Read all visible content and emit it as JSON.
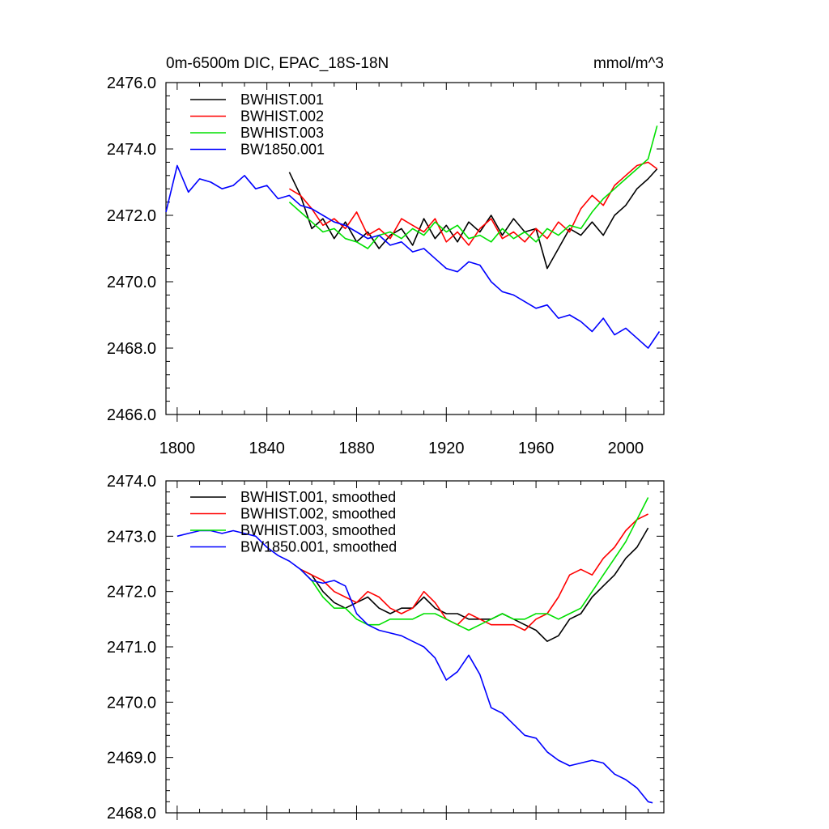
{
  "chart_data": [
    {
      "type": "line",
      "title_left": "0m-6500m DIC, EPAC_18S-18N",
      "title_right": "mmol/m^3",
      "xlabel": "",
      "ylabel": "",
      "xlim": [
        1795,
        2017
      ],
      "ylim": [
        2466.0,
        2476.0
      ],
      "xticks": [
        1800,
        1840,
        1880,
        1920,
        1960,
        2000
      ],
      "xtick_labels": [
        "1800",
        "1840",
        "1880",
        "1920",
        "1960",
        "2000"
      ],
      "yticks": [
        2466.0,
        2468.0,
        2470.0,
        2472.0,
        2474.0,
        2476.0
      ],
      "ytick_labels": [
        "2466.0",
        "2468.0",
        "2470.0",
        "2472.0",
        "2474.0",
        "2476.0"
      ],
      "legend_position": "top-left",
      "series": [
        {
          "name": "BWHIST.001",
          "color": "#000000",
          "x": [
            1850,
            1855,
            1860,
            1865,
            1870,
            1875,
            1880,
            1885,
            1890,
            1895,
            1900,
            1905,
            1910,
            1915,
            1920,
            1925,
            1930,
            1935,
            1940,
            1945,
            1950,
            1955,
            1960,
            1965,
            1970,
            1975,
            1980,
            1985,
            1990,
            1995,
            2000,
            2005,
            2010,
            2014
          ],
          "values": [
            2473.3,
            2472.6,
            2471.6,
            2471.9,
            2471.3,
            2471.8,
            2471.2,
            2471.5,
            2471.0,
            2471.4,
            2471.6,
            2471.1,
            2471.9,
            2471.3,
            2471.7,
            2471.2,
            2471.8,
            2471.5,
            2472.0,
            2471.4,
            2471.9,
            2471.5,
            2471.6,
            2470.4,
            2471.0,
            2471.6,
            2471.4,
            2471.8,
            2471.4,
            2472.0,
            2472.3,
            2472.8,
            2473.1,
            2473.4
          ]
        },
        {
          "name": "BWHIST.002",
          "color": "#ff0000",
          "x": [
            1850,
            1855,
            1860,
            1865,
            1870,
            1875,
            1880,
            1885,
            1890,
            1895,
            1900,
            1905,
            1910,
            1915,
            1920,
            1925,
            1930,
            1935,
            1940,
            1945,
            1950,
            1955,
            1960,
            1965,
            1970,
            1975,
            1980,
            1985,
            1990,
            1995,
            2000,
            2005,
            2010,
            2014
          ],
          "values": [
            2472.8,
            2472.6,
            2472.2,
            2471.7,
            2471.9,
            2471.6,
            2472.1,
            2471.4,
            2471.6,
            2471.3,
            2471.9,
            2471.7,
            2471.5,
            2471.9,
            2471.2,
            2471.5,
            2471.1,
            2471.6,
            2471.9,
            2471.3,
            2471.5,
            2471.2,
            2471.6,
            2471.3,
            2471.8,
            2471.5,
            2472.2,
            2472.6,
            2472.3,
            2472.9,
            2473.2,
            2473.5,
            2473.6,
            2473.4
          ]
        },
        {
          "name": "BWHIST.003",
          "color": "#00e000",
          "x": [
            1850,
            1855,
            1860,
            1865,
            1870,
            1875,
            1880,
            1885,
            1890,
            1895,
            1900,
            1905,
            1910,
            1915,
            1920,
            1925,
            1930,
            1935,
            1940,
            1945,
            1950,
            1955,
            1960,
            1965,
            1970,
            1975,
            1980,
            1985,
            1990,
            1995,
            2000,
            2005,
            2010,
            2014
          ],
          "values": [
            2472.4,
            2472.1,
            2471.8,
            2471.5,
            2471.6,
            2471.3,
            2471.2,
            2471.0,
            2471.4,
            2471.5,
            2471.3,
            2471.6,
            2471.4,
            2471.8,
            2471.5,
            2471.7,
            2471.3,
            2471.4,
            2471.2,
            2471.6,
            2471.3,
            2471.5,
            2471.2,
            2471.6,
            2471.4,
            2471.7,
            2471.6,
            2472.1,
            2472.5,
            2472.8,
            2473.1,
            2473.4,
            2473.7,
            2474.7
          ]
        },
        {
          "name": "BW1850.001",
          "color": "#0000ff",
          "x": [
            1795,
            1800,
            1805,
            1810,
            1815,
            1820,
            1825,
            1830,
            1835,
            1840,
            1845,
            1850,
            1855,
            1860,
            1865,
            1870,
            1875,
            1880,
            1885,
            1890,
            1895,
            1900,
            1905,
            1910,
            1915,
            1920,
            1925,
            1930,
            1935,
            1940,
            1945,
            1950,
            1955,
            1960,
            1965,
            1970,
            1975,
            1980,
            1985,
            1990,
            1995,
            2000,
            2005,
            2010,
            2015
          ],
          "values": [
            2472.1,
            2473.5,
            2472.7,
            2473.1,
            2473.0,
            2472.8,
            2472.9,
            2473.2,
            2472.8,
            2472.9,
            2472.5,
            2472.6,
            2472.3,
            2472.2,
            2472.0,
            2471.8,
            2471.7,
            2471.5,
            2471.3,
            2471.4,
            2471.1,
            2471.2,
            2470.9,
            2471.0,
            2470.7,
            2470.4,
            2470.3,
            2470.6,
            2470.5,
            2470.0,
            2469.7,
            2469.6,
            2469.4,
            2469.2,
            2469.3,
            2468.9,
            2469.0,
            2468.8,
            2468.5,
            2468.9,
            2468.4,
            2468.6,
            2468.3,
            2468.0,
            2468.5
          ]
        }
      ]
    },
    {
      "type": "line",
      "title_left": "",
      "title_right": "",
      "xlabel": "",
      "ylabel": "",
      "xlim": [
        1795,
        2017
      ],
      "ylim": [
        2468.0,
        2474.0
      ],
      "xticks": [
        1800,
        1840,
        1880,
        1920,
        1960,
        2000
      ],
      "yticks": [
        2468.0,
        2469.0,
        2470.0,
        2471.0,
        2472.0,
        2473.0,
        2474.0
      ],
      "ytick_labels": [
        "2468.0",
        "2469.0",
        "2470.0",
        "2471.0",
        "2472.0",
        "2473.0",
        "2474.0"
      ],
      "legend_position": "top-left",
      "series": [
        {
          "name": "BWHIST.001, smoothed",
          "color": "#000000",
          "x": [
            1855,
            1860,
            1865,
            1870,
            1875,
            1880,
            1885,
            1890,
            1895,
            1900,
            1905,
            1910,
            1915,
            1920,
            1925,
            1930,
            1935,
            1940,
            1945,
            1950,
            1955,
            1960,
            1965,
            1970,
            1975,
            1980,
            1985,
            1990,
            1995,
            2000,
            2005,
            2010
          ],
          "values": [
            2472.4,
            2472.3,
            2472.0,
            2471.8,
            2471.7,
            2471.8,
            2471.9,
            2471.7,
            2471.6,
            2471.7,
            2471.7,
            2471.9,
            2471.7,
            2471.6,
            2471.6,
            2471.5,
            2471.5,
            2471.5,
            2471.6,
            2471.5,
            2471.4,
            2471.3,
            2471.1,
            2471.2,
            2471.5,
            2471.6,
            2471.9,
            2472.1,
            2472.3,
            2472.6,
            2472.8,
            2473.15
          ]
        },
        {
          "name": "BWHIST.002, smoothed",
          "color": "#ff0000",
          "x": [
            1855,
            1860,
            1865,
            1870,
            1875,
            1880,
            1885,
            1890,
            1895,
            1900,
            1905,
            1910,
            1915,
            1920,
            1925,
            1930,
            1935,
            1940,
            1945,
            1950,
            1955,
            1960,
            1965,
            1970,
            1975,
            1980,
            1985,
            1990,
            1995,
            2000,
            2005,
            2010
          ],
          "values": [
            2472.4,
            2472.3,
            2472.2,
            2472.0,
            2471.9,
            2471.8,
            2472.0,
            2471.9,
            2471.7,
            2471.6,
            2471.7,
            2472.0,
            2471.8,
            2471.5,
            2471.4,
            2471.6,
            2471.5,
            2471.4,
            2471.4,
            2471.4,
            2471.3,
            2471.5,
            2471.6,
            2471.9,
            2472.3,
            2472.4,
            2472.3,
            2472.6,
            2472.8,
            2473.1,
            2473.3,
            2473.4
          ]
        },
        {
          "name": "BWHIST.003, smoothed",
          "color": "#00e000",
          "x": [
            1855,
            1860,
            1865,
            1870,
            1875,
            1880,
            1885,
            1890,
            1895,
            1900,
            1905,
            1910,
            1915,
            1920,
            1925,
            1930,
            1935,
            1940,
            1945,
            1950,
            1955,
            1960,
            1965,
            1970,
            1975,
            1980,
            1985,
            1990,
            1995,
            2000,
            2005,
            2010
          ],
          "values": [
            2472.4,
            2472.2,
            2471.9,
            2471.7,
            2471.7,
            2471.5,
            2471.4,
            2471.4,
            2471.5,
            2471.5,
            2471.5,
            2471.6,
            2471.6,
            2471.5,
            2471.4,
            2471.3,
            2471.4,
            2471.5,
            2471.6,
            2471.5,
            2471.5,
            2471.6,
            2471.6,
            2471.5,
            2471.6,
            2471.7,
            2472.0,
            2472.3,
            2472.6,
            2472.9,
            2473.3,
            2473.7
          ]
        },
        {
          "name": "BW1850.001, smoothed",
          "color": "#0000ff",
          "x": [
            1800,
            1805,
            1810,
            1815,
            1820,
            1825,
            1830,
            1835,
            1840,
            1845,
            1850,
            1855,
            1860,
            1865,
            1870,
            1875,
            1880,
            1885,
            1890,
            1895,
            1900,
            1905,
            1910,
            1915,
            1920,
            1925,
            1930,
            1935,
            1940,
            1945,
            1950,
            1955,
            1960,
            1965,
            1970,
            1975,
            1980,
            1985,
            1990,
            1995,
            2000,
            2005,
            2010,
            2012
          ],
          "values": [
            2473.0,
            2473.05,
            2473.1,
            2473.1,
            2473.05,
            2473.1,
            2473.05,
            2473.0,
            2472.8,
            2472.65,
            2472.55,
            2472.4,
            2472.2,
            2472.15,
            2472.2,
            2472.1,
            2471.6,
            2471.4,
            2471.3,
            2471.25,
            2471.2,
            2471.1,
            2471.0,
            2470.8,
            2470.4,
            2470.55,
            2470.85,
            2470.5,
            2469.9,
            2469.8,
            2469.6,
            2469.4,
            2469.35,
            2469.1,
            2468.95,
            2468.85,
            2468.9,
            2468.95,
            2468.9,
            2468.7,
            2468.6,
            2468.45,
            2468.2,
            2468.18
          ]
        }
      ]
    }
  ]
}
